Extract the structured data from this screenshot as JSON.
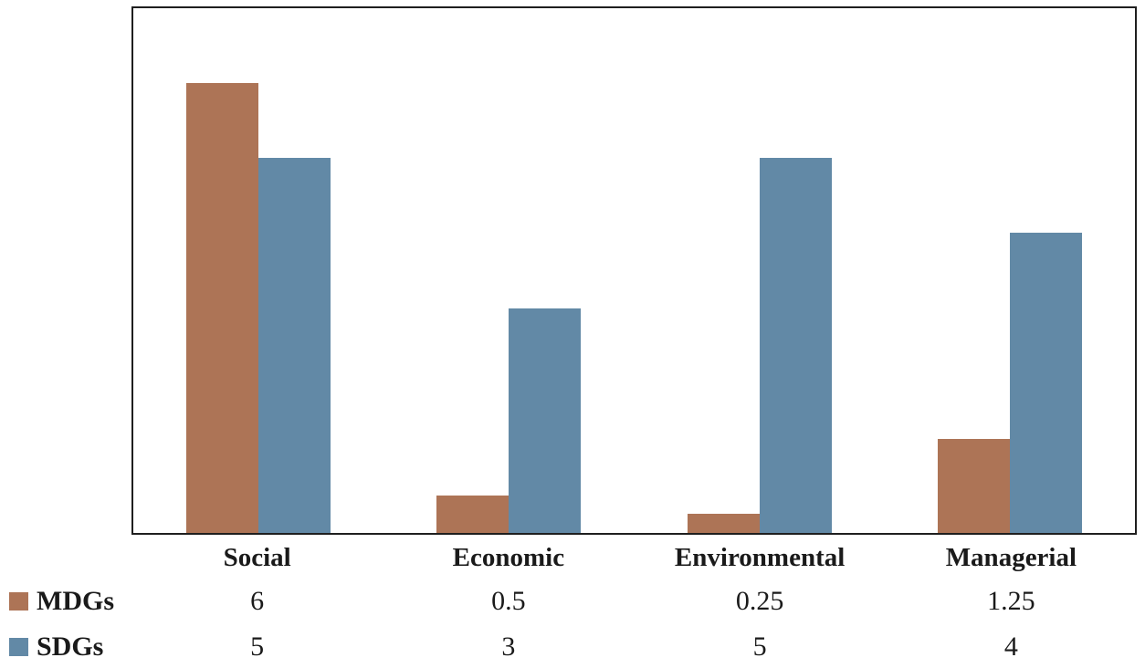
{
  "chart_data": {
    "type": "bar",
    "title": "",
    "xlabel": "",
    "ylabel": "",
    "categories": [
      "Social",
      "Economic",
      "Environmental",
      "Managerial"
    ],
    "series": [
      {
        "name": "MDGs",
        "color": "#AD7456",
        "values": [
          6,
          0.5,
          0.25,
          1.25
        ]
      },
      {
        "name": "SDGs",
        "color": "#6289A6",
        "values": [
          5,
          3,
          5,
          4
        ]
      }
    ],
    "ylim": [
      0,
      7
    ],
    "grid": false,
    "axis_ticks_visible": false,
    "plot_border_color": "#1f1f1f",
    "legend_position": "data-table-left",
    "data_table_shown": true
  }
}
